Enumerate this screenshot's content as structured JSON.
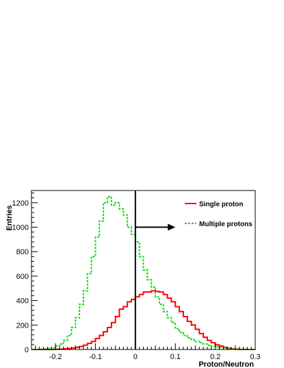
{
  "chart_data": {
    "type": "histogram",
    "xlabel": "Proton/Neutron",
    "ylabel": "Entries",
    "xlim": [
      -0.26,
      0.3
    ],
    "ylim": [
      0,
      1300
    ],
    "x_ticks": [
      "-0.2",
      "-0.1",
      "0",
      "0.1",
      "0.2",
      "0.3"
    ],
    "y_ticks": [
      "0",
      "200",
      "400",
      "600",
      "800",
      "1000",
      "1200"
    ],
    "bin_width": 0.01,
    "first_bin_low_edge": -0.26,
    "legend_position": "top-right",
    "series": [
      {
        "name": "Single proton",
        "color": "#ff0000",
        "line_style": "solid",
        "values": [
          0,
          0,
          0,
          0,
          0,
          1,
          2,
          3,
          5,
          8,
          12,
          18,
          25,
          35,
          50,
          65,
          90,
          115,
          145,
          180,
          220,
          270,
          330,
          350,
          390,
          410,
          430,
          450,
          470,
          470,
          480,
          475,
          470,
          450,
          420,
          390,
          350,
          310,
          270,
          230,
          200,
          165,
          130,
          100,
          75,
          55,
          38,
          28,
          18,
          10,
          5,
          3,
          1,
          1,
          0,
          0
        ]
      },
      {
        "name": "Multiple protons",
        "color": "#00dd00",
        "line_style": "dashed",
        "values": [
          0,
          1,
          3,
          5,
          8,
          15,
          28,
          45,
          75,
          115,
          180,
          260,
          370,
          480,
          620,
          760,
          920,
          1050,
          1200,
          1250,
          1180,
          1200,
          1150,
          1100,
          1000,
          940,
          880,
          760,
          650,
          570,
          510,
          430,
          370,
          310,
          260,
          220,
          170,
          140,
          115,
          95,
          80,
          65,
          55,
          45,
          35,
          25,
          20,
          15,
          10,
          5,
          3,
          2,
          0,
          0,
          0,
          0
        ]
      }
    ],
    "annotations": [
      {
        "type": "vertical-line",
        "x": 0,
        "color": "#000000"
      },
      {
        "type": "arrow",
        "from": [
          0,
          1000
        ],
        "to": [
          0.1,
          1000
        ],
        "direction": "right",
        "color": "#000000"
      }
    ]
  }
}
